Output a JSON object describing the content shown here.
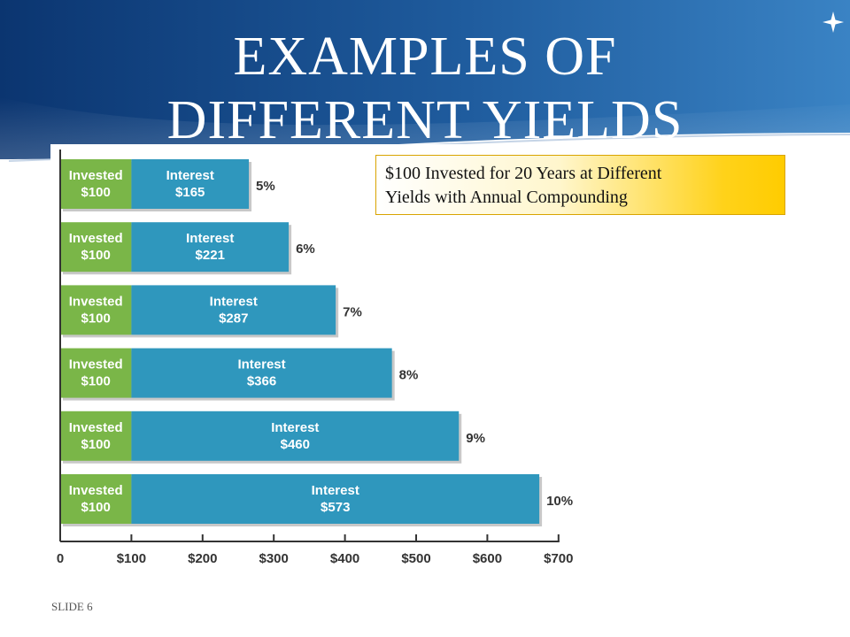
{
  "slide": {
    "title_line1": "EXAMPLES OF",
    "title_line2": "DIFFERENT YIELDS",
    "slide_number": "SLIDE 6",
    "callout_line1": "$100 Invested for 20 Years at Different",
    "callout_line2": "Yields with Annual Compounding"
  },
  "colors": {
    "invested": "#7ab648",
    "interest": "#2f97bd",
    "header_dark": "#0e3e7a",
    "header_light": "#2f76b8",
    "callout_gold": "#ffcc00"
  },
  "chart_data": {
    "type": "bar",
    "orientation": "horizontal",
    "stacked": true,
    "categories": [
      "5%",
      "6%",
      "7%",
      "8%",
      "9%",
      "10%"
    ],
    "series": [
      {
        "name": "Invested",
        "values": [
          100,
          100,
          100,
          100,
          100,
          100
        ],
        "labels_line1": [
          "Invested",
          "Invested",
          "Invested",
          "Invested",
          "Invested",
          "Invested"
        ],
        "labels_line2": [
          "$100",
          "$100",
          "$100",
          "$100",
          "$100",
          "$100"
        ]
      },
      {
        "name": "Interest",
        "values": [
          165,
          221,
          287,
          366,
          460,
          573
        ],
        "labels_line1": [
          "Interest",
          "Interest",
          "Interest",
          "Interest",
          "Interest",
          "Interest"
        ],
        "labels_line2": [
          "$165",
          "$221",
          "$287",
          "$366",
          "$460",
          "$573"
        ]
      }
    ],
    "x_ticks": [
      0,
      100,
      200,
      300,
      400,
      500,
      600,
      700
    ],
    "x_tick_labels": [
      "0",
      "$100",
      "$200",
      "$300",
      "$400",
      "$500",
      "$600",
      "$700"
    ],
    "xlim": [
      0,
      700
    ],
    "grid": false,
    "legend": "none"
  }
}
